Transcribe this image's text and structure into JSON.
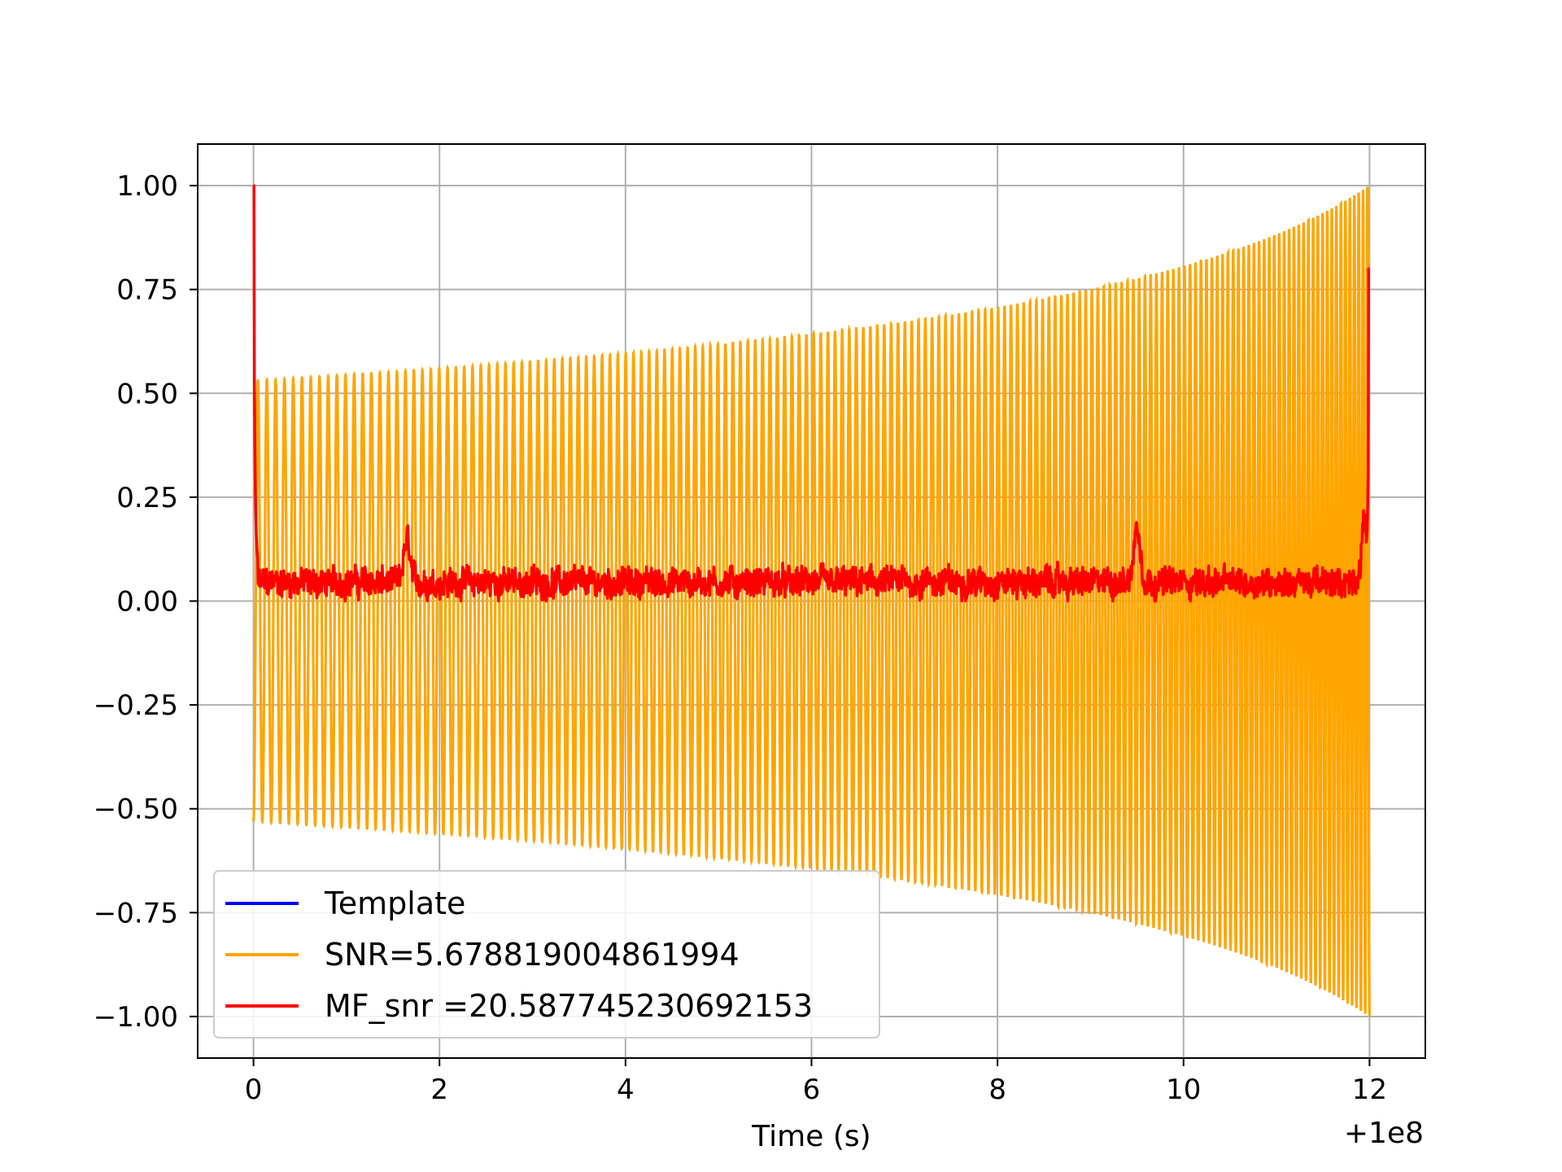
{
  "chart_data": {
    "type": "line",
    "title": "",
    "xlabel": "Time (s)",
    "ylabel": "",
    "x_offset_text": "+1e8",
    "xlim": [
      -0.6,
      12.6
    ],
    "ylim": [
      -1.1,
      1.1
    ],
    "x_ticks": [
      0,
      2,
      4,
      6,
      8,
      10,
      12
    ],
    "x_tick_labels": [
      "0",
      "2",
      "4",
      "6",
      "8",
      "10",
      "12"
    ],
    "y_ticks": [
      1.0,
      0.75,
      0.5,
      0.25,
      0.0,
      -0.25,
      -0.5,
      -0.75,
      -1.0
    ],
    "y_tick_labels": [
      "1.00",
      "0.75",
      "0.50",
      "0.25",
      "0.00",
      "−0.25",
      "−0.50",
      "−0.75",
      "−1.00"
    ],
    "grid": true,
    "legend_position": "lower-left",
    "series": [
      {
        "name": "Template",
        "color": "#0000ff",
        "description_values": {
          "t_start": 0,
          "t_end": 12,
          "amp_start": 0.53,
          "amp_end": 1.0,
          "cycles": 165
        }
      },
      {
        "name": "SNR=5.678819004861994",
        "color": "#ffa500",
        "description_values": {
          "t_start": 0,
          "t_end": 12,
          "amp_start": 0.53,
          "amp_end": 1.0,
          "cycles": 165
        }
      },
      {
        "name": "MF_snr =20.587745230692153",
        "color": "#ff0000",
        "peaks": [
          {
            "x": 0.0,
            "y": 1.0
          },
          {
            "x": 12.0,
            "y": 0.8
          }
        ],
        "baseline_range": [
          0.0,
          0.16
        ],
        "notable_bumps": [
          {
            "x": 1.65,
            "y": 0.16
          },
          {
            "x": 9.5,
            "y": 0.19
          },
          {
            "x": 11.95,
            "y": 0.2
          }
        ]
      }
    ]
  }
}
